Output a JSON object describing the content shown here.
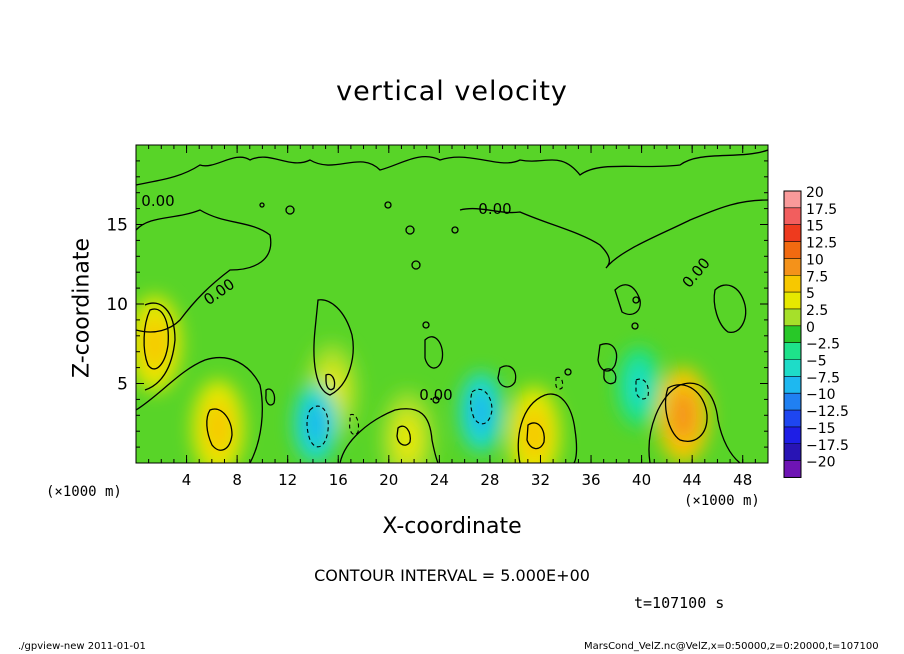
{
  "chart_data": {
    "type": "heatmap",
    "title": "vertical velocity",
    "xlabel": "X-coordinate",
    "ylabel": "Z-coordinate",
    "x_unit": "(×1000 m)",
    "y_unit": "(×1000 m)",
    "xlim": [
      0,
      50
    ],
    "ylim": [
      0,
      20
    ],
    "x_ticks": [
      "4",
      "8",
      "12",
      "16",
      "20",
      "24",
      "28",
      "32",
      "36",
      "40",
      "44",
      "48"
    ],
    "y_ticks": [
      "5",
      "10",
      "15"
    ],
    "contour_labels": [
      "0.00",
      "0.00",
      "0.00",
      "0.00",
      "0.00"
    ],
    "colorbar": {
      "labels": [
        "20",
        "17.5",
        "15",
        "12.5",
        "10",
        "7.5",
        "5",
        "2.5",
        "0",
        "-2.5",
        "-5",
        "-7.5",
        "-10",
        "-12.5",
        "-15",
        "-17.5",
        "-20"
      ],
      "colors": [
        "#f99a9a",
        "#f25e5e",
        "#ee3a1e",
        "#f26a10",
        "#f4921a",
        "#f7c800",
        "#e6e800",
        "#a6e02a",
        "#28c828",
        "#1ee28a",
        "#1edcc8",
        "#1eb8f0",
        "#2080f2",
        "#1e46f0",
        "#1e1ee6",
        "#2814b4",
        "#6e14b4"
      ]
    },
    "features": [
      {
        "kind": "updraft",
        "x": 1.5,
        "z": 7.5,
        "w": 5
      },
      {
        "kind": "updraft",
        "x": 6.5,
        "z": 2.2,
        "w": 5
      },
      {
        "kind": "updraft",
        "x": 15.5,
        "z": 4.5,
        "w": 2.5
      },
      {
        "kind": "updraft",
        "x": 21.5,
        "z": 1.5,
        "w": 2.5
      },
      {
        "kind": "updraft",
        "x": 31.5,
        "z": 1.8,
        "w": 5
      },
      {
        "kind": "updraft",
        "x": 43.3,
        "z": 3.0,
        "w": 7.5
      },
      {
        "kind": "downdraft",
        "x": 14.2,
        "z": 2.5,
        "w": -5
      },
      {
        "kind": "downdraft",
        "x": 27.3,
        "z": 3.2,
        "w": -5
      },
      {
        "kind": "downdraft",
        "x": 39.8,
        "z": 4.8,
        "w": -2.5
      }
    ]
  },
  "annotations": {
    "contour_interval": "CONTOUR INTERVAL = 5.000E+00",
    "time": "t=107100 s",
    "footer_left": "./gpview-new   2011-01-01",
    "footer_right": "MarsCond_VelZ.nc@VelZ,x=0:50000,z=0:20000,t=107100"
  }
}
